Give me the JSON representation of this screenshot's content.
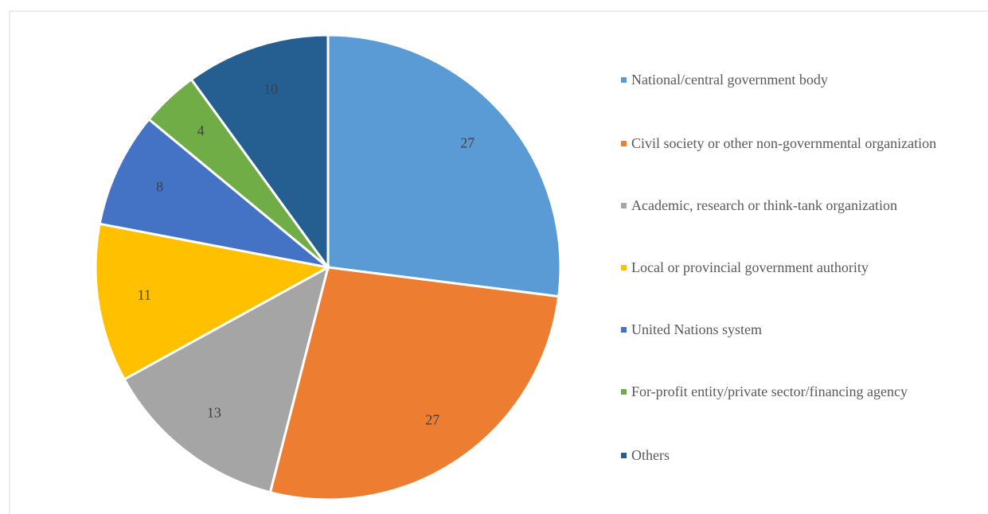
{
  "chart_data": {
    "type": "pie",
    "categories": [
      "National/central government body",
      "Civil society or other non-governmental organization",
      "Academic, research or think-tank organization",
      "Local or provincial government authority",
      "United Nations system",
      "For-profit entity/private sector/financing agency",
      "Others"
    ],
    "values": [
      27,
      27,
      13,
      11,
      8,
      4,
      10
    ],
    "colors": [
      "#5b9bd5",
      "#ed7d31",
      "#a5a5a5",
      "#ffc000",
      "#4472c4",
      "#70ad47",
      "#255e91"
    ],
    "legend": "right"
  }
}
